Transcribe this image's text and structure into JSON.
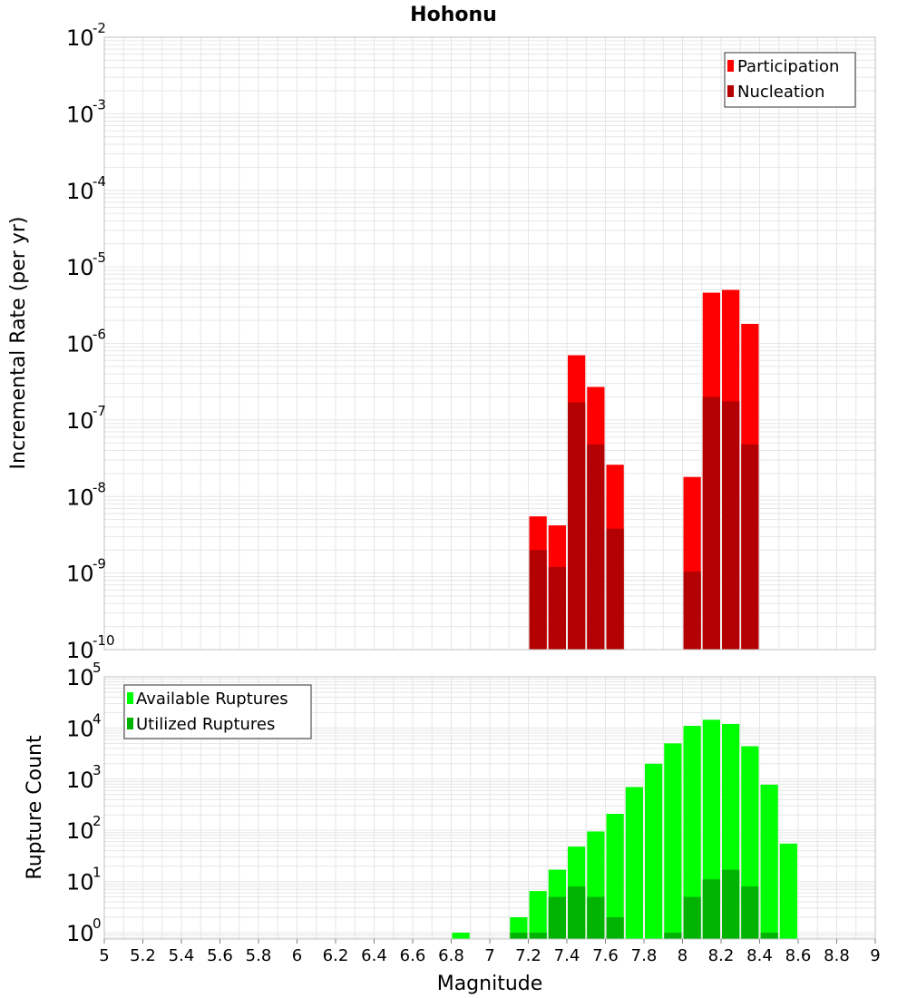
{
  "title": "Hohonu",
  "xlabel": "Magnitude",
  "colors": {
    "participation": "#ff0000",
    "nucleation": "#b30000",
    "available": "#00ff00",
    "utilized": "#00b300",
    "grid": "#e6e6e6",
    "frame": "#c0c0c0"
  },
  "chart_data": [
    {
      "type": "bar",
      "panel": "rate",
      "ylabel": "Incremental Rate (per yr)",
      "yscale": "log",
      "ylim": [
        1e-10,
        0.01
      ],
      "xlim": [
        5,
        9
      ],
      "bin_width": 0.1,
      "grid": true,
      "legend_position": "top-right",
      "series": [
        {
          "name": "Participation",
          "color": "#ff0000",
          "points": [
            {
              "x": 7.25,
              "y": 5.5e-09
            },
            {
              "x": 7.35,
              "y": 4.2e-09
            },
            {
              "x": 7.45,
              "y": 7e-07
            },
            {
              "x": 7.55,
              "y": 2.7e-07
            },
            {
              "x": 7.65,
              "y": 2.6e-08
            },
            {
              "x": 8.05,
              "y": 1.8e-08
            },
            {
              "x": 8.15,
              "y": 4.6e-06
            },
            {
              "x": 8.25,
              "y": 5e-06
            },
            {
              "x": 8.35,
              "y": 1.8e-06
            }
          ]
        },
        {
          "name": "Nucleation",
          "color": "#b30000",
          "points": [
            {
              "x": 7.25,
              "y": 2e-09
            },
            {
              "x": 7.35,
              "y": 1.2e-09
            },
            {
              "x": 7.45,
              "y": 1.7e-07
            },
            {
              "x": 7.55,
              "y": 4.8e-08
            },
            {
              "x": 7.65,
              "y": 3.8e-09
            },
            {
              "x": 8.05,
              "y": 1.05e-09
            },
            {
              "x": 8.15,
              "y": 2e-07
            },
            {
              "x": 8.25,
              "y": 1.75e-07
            },
            {
              "x": 8.35,
              "y": 4.8e-08
            }
          ]
        }
      ]
    },
    {
      "type": "bar",
      "panel": "count",
      "ylabel": "Rupture Count",
      "yscale": "log",
      "ylim": [
        0.75,
        100000
      ],
      "xlim": [
        5,
        9
      ],
      "bin_width": 0.1,
      "grid": true,
      "legend_position": "top-left",
      "x_ticks": [
        "5",
        "5.2",
        "5.4",
        "5.6",
        "5.8",
        "6",
        "6.2",
        "6.4",
        "6.6",
        "6.8",
        "7",
        "7.2",
        "7.4",
        "7.6",
        "7.8",
        "8",
        "8.2",
        "8.4",
        "8.6",
        "8.8",
        "9"
      ],
      "series": [
        {
          "name": "Available Ruptures",
          "color": "#00ff00",
          "points": [
            {
              "x": 6.85,
              "y": 1
            },
            {
              "x": 7.15,
              "y": 2
            },
            {
              "x": 7.25,
              "y": 6.5
            },
            {
              "x": 7.35,
              "y": 17
            },
            {
              "x": 7.45,
              "y": 48
            },
            {
              "x": 7.55,
              "y": 95
            },
            {
              "x": 7.65,
              "y": 210
            },
            {
              "x": 7.75,
              "y": 700
            },
            {
              "x": 7.85,
              "y": 2000
            },
            {
              "x": 7.95,
              "y": 5000
            },
            {
              "x": 8.05,
              "y": 11000
            },
            {
              "x": 8.15,
              "y": 14500
            },
            {
              "x": 8.25,
              "y": 12000
            },
            {
              "x": 8.35,
              "y": 4400
            },
            {
              "x": 8.45,
              "y": 780
            },
            {
              "x": 8.55,
              "y": 55
            }
          ]
        },
        {
          "name": "Utilized Ruptures",
          "color": "#00b300",
          "points": [
            {
              "x": 7.15,
              "y": 1
            },
            {
              "x": 7.25,
              "y": 1
            },
            {
              "x": 7.35,
              "y": 5
            },
            {
              "x": 7.45,
              "y": 8
            },
            {
              "x": 7.55,
              "y": 5
            },
            {
              "x": 7.65,
              "y": 2
            },
            {
              "x": 7.95,
              "y": 1
            },
            {
              "x": 8.05,
              "y": 5
            },
            {
              "x": 8.15,
              "y": 11
            },
            {
              "x": 8.25,
              "y": 17
            },
            {
              "x": 8.35,
              "y": 8
            },
            {
              "x": 8.45,
              "y": 1
            }
          ]
        }
      ]
    }
  ],
  "top_y_ticks": [
    {
      "base": "10",
      "exp": "-2",
      "value": 0.01
    },
    {
      "base": "10",
      "exp": "-3",
      "value": 0.001
    },
    {
      "base": "10",
      "exp": "-4",
      "value": 0.0001
    },
    {
      "base": "10",
      "exp": "-5",
      "value": 1e-05
    },
    {
      "base": "10",
      "exp": "-6",
      "value": 1e-06
    },
    {
      "base": "10",
      "exp": "-7",
      "value": 1e-07
    },
    {
      "base": "10",
      "exp": "-8",
      "value": 1e-08
    },
    {
      "base": "10",
      "exp": "-9",
      "value": 1e-09
    },
    {
      "base": "10",
      "exp": "-10",
      "value": 1e-10
    }
  ],
  "bottom_y_ticks": [
    {
      "base": "10",
      "exp": "5",
      "value": 100000
    },
    {
      "base": "10",
      "exp": "4",
      "value": 10000
    },
    {
      "base": "10",
      "exp": "3",
      "value": 1000
    },
    {
      "base": "10",
      "exp": "2",
      "value": 100
    },
    {
      "base": "10",
      "exp": "1",
      "value": 10
    },
    {
      "base": "10",
      "exp": "0",
      "value": 1
    }
  ]
}
